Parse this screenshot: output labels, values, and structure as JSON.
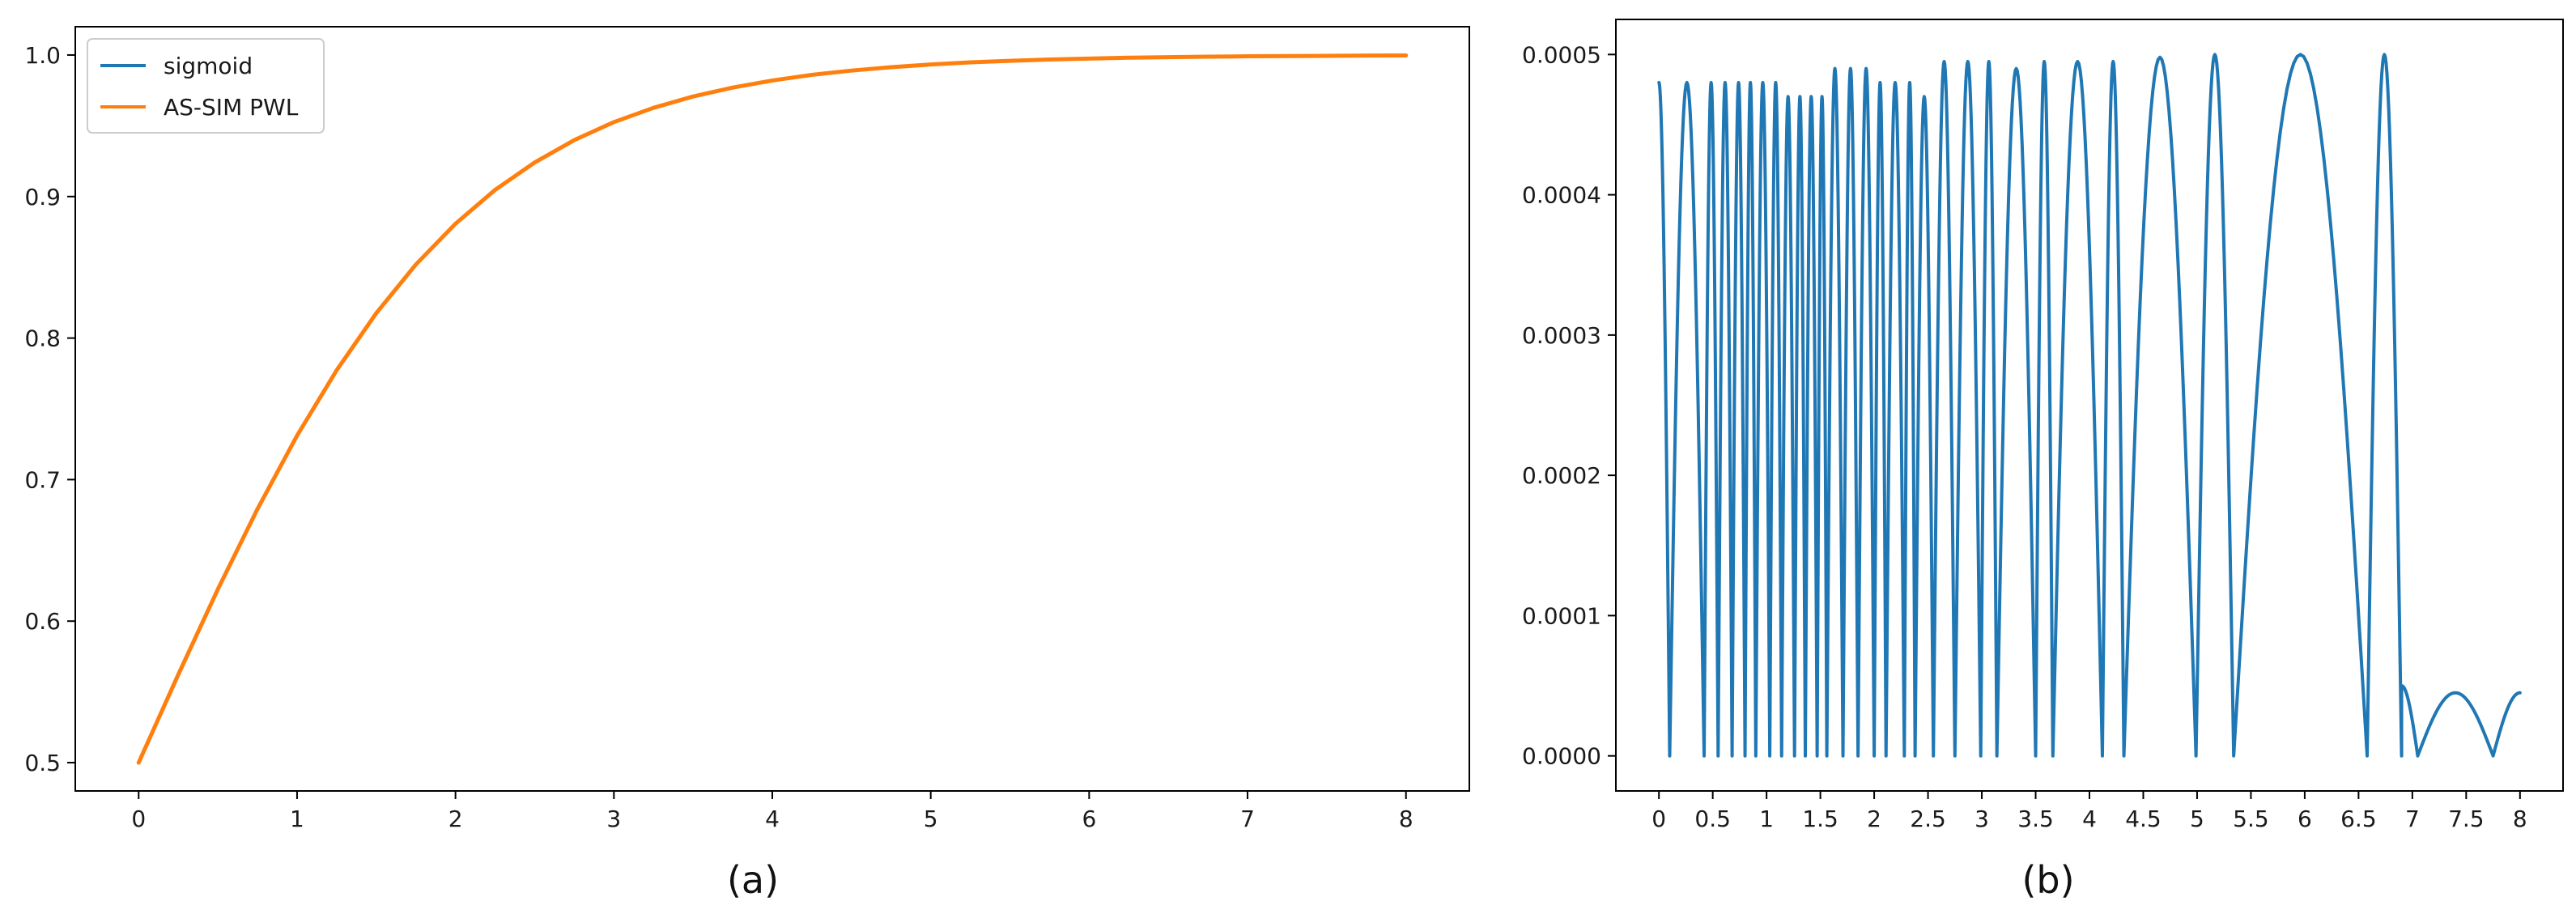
{
  "colors": {
    "sigmoid": "#1f77b4",
    "pwl": "#ff7f0e",
    "error": "#1f77b4",
    "axes": "#000000",
    "background": "#ffffff"
  },
  "chart_data": [
    {
      "panel": "a",
      "type": "line",
      "caption": "(a)",
      "title": "",
      "xlabel": "",
      "ylabel": "",
      "xlim": [
        -0.4,
        8.4
      ],
      "ylim": [
        0.48,
        1.02
      ],
      "xticks": [
        0,
        1,
        2,
        3,
        4,
        5,
        6,
        7,
        8
      ],
      "xtick_labels": [
        "0",
        "1",
        "2",
        "3",
        "4",
        "5",
        "6",
        "7",
        "8"
      ],
      "yticks": [
        0.5,
        0.6,
        0.7,
        0.8,
        0.9,
        1.0
      ],
      "ytick_labels": [
        "0.5",
        "0.6",
        "0.7",
        "0.8",
        "0.9",
        "1.0"
      ],
      "grid": false,
      "legend": "top-left",
      "series": [
        {
          "name": "sigmoid",
          "color": "#1f77b4",
          "x": [
            0,
            0.25,
            0.5,
            0.75,
            1,
            1.25,
            1.5,
            1.75,
            2,
            2.25,
            2.5,
            2.75,
            3,
            3.25,
            3.5,
            3.75,
            4,
            4.25,
            4.5,
            4.75,
            5,
            5.25,
            5.5,
            5.75,
            6,
            6.25,
            6.5,
            6.75,
            7,
            7.25,
            7.5,
            7.75,
            8
          ],
          "y": [
            0.5,
            0.5622,
            0.6225,
            0.6792,
            0.7311,
            0.7773,
            0.8176,
            0.852,
            0.8808,
            0.9047,
            0.9241,
            0.9399,
            0.9526,
            0.9627,
            0.9707,
            0.977,
            0.982,
            0.986,
            0.989,
            0.9914,
            0.9933,
            0.9948,
            0.9959,
            0.9968,
            0.9975,
            0.9981,
            0.9985,
            0.9988,
            0.9991,
            0.9993,
            0.9994,
            0.9996,
            0.9997
          ]
        },
        {
          "name": "AS-SIM PWL",
          "color": "#ff7f0e",
          "x": [
            0,
            0.25,
            0.5,
            0.75,
            1,
            1.25,
            1.5,
            1.75,
            2,
            2.25,
            2.5,
            2.75,
            3,
            3.25,
            3.5,
            3.75,
            4,
            4.25,
            4.5,
            4.75,
            5,
            5.25,
            5.5,
            5.75,
            6,
            6.25,
            6.5,
            6.75,
            7,
            7.25,
            7.5,
            7.75,
            8
          ],
          "y": [
            0.5,
            0.5622,
            0.6225,
            0.6792,
            0.7311,
            0.7773,
            0.8176,
            0.852,
            0.8808,
            0.9047,
            0.9241,
            0.9399,
            0.9526,
            0.9627,
            0.9707,
            0.977,
            0.982,
            0.986,
            0.989,
            0.9914,
            0.9933,
            0.9948,
            0.9959,
            0.9968,
            0.9975,
            0.9981,
            0.9985,
            0.9988,
            0.9991,
            0.9993,
            0.9994,
            0.9996,
            0.9997
          ]
        }
      ]
    },
    {
      "panel": "b",
      "type": "line",
      "caption": "(b)",
      "title": "",
      "xlabel": "",
      "ylabel": "",
      "xlim": [
        -0.4,
        8.4
      ],
      "ylim": [
        -2.5e-05,
        0.000525
      ],
      "xticks": [
        0,
        0.5,
        1,
        1.5,
        2,
        2.5,
        3,
        3.5,
        4,
        4.5,
        5,
        5.5,
        6,
        6.5,
        7,
        7.5,
        8
      ],
      "xtick_labels": [
        "0",
        "0.5",
        "1",
        "1.5",
        "2",
        "2.5",
        "3",
        "3.5",
        "4",
        "4.5",
        "5",
        "5.5",
        "6",
        "6.5",
        "7",
        "7.5",
        "8"
      ],
      "yticks": [
        0,
        0.0001,
        0.0002,
        0.0003,
        0.0004,
        0.0005
      ],
      "ytick_labels": [
        "0.0000",
        "0.0001",
        "0.0002",
        "0.0003",
        "0.0004",
        "0.0005"
      ],
      "grid": false,
      "legend": "none",
      "series": [
        {
          "segments": [
            {
              "x0": 0.0,
              "x1": 0.1,
              "peak": 0.00048,
              "kind": "fall"
            },
            {
              "x0": 0.1,
              "x1": 0.42,
              "peak": 0.00048,
              "kind": "arch"
            },
            {
              "x0": 0.42,
              "x1": 0.55,
              "peak": 0.00048,
              "kind": "arch"
            },
            {
              "x0": 0.55,
              "x1": 0.68,
              "peak": 0.00048,
              "kind": "arch"
            },
            {
              "x0": 0.68,
              "x1": 0.8,
              "peak": 0.00048,
              "kind": "arch"
            },
            {
              "x0": 0.8,
              "x1": 0.9,
              "peak": 0.00048,
              "kind": "arch"
            },
            {
              "x0": 0.9,
              "x1": 1.03,
              "peak": 0.00048,
              "kind": "arch"
            },
            {
              "x0": 1.03,
              "x1": 1.14,
              "peak": 0.00048,
              "kind": "arch"
            },
            {
              "x0": 1.14,
              "x1": 1.26,
              "peak": 0.00047,
              "kind": "arch"
            },
            {
              "x0": 1.26,
              "x1": 1.36,
              "peak": 0.00047,
              "kind": "arch"
            },
            {
              "x0": 1.36,
              "x1": 1.47,
              "peak": 0.00047,
              "kind": "arch"
            },
            {
              "x0": 1.47,
              "x1": 1.56,
              "peak": 0.00047,
              "kind": "arch"
            },
            {
              "x0": 1.56,
              "x1": 1.71,
              "peak": 0.00049,
              "kind": "arch"
            },
            {
              "x0": 1.71,
              "x1": 1.85,
              "peak": 0.00049,
              "kind": "arch"
            },
            {
              "x0": 1.85,
              "x1": 2.0,
              "peak": 0.00049,
              "kind": "arch"
            },
            {
              "x0": 2.0,
              "x1": 2.11,
              "peak": 0.00048,
              "kind": "arch"
            },
            {
              "x0": 2.11,
              "x1": 2.28,
              "peak": 0.00048,
              "kind": "arch"
            },
            {
              "x0": 2.28,
              "x1": 2.38,
              "peak": 0.00048,
              "kind": "arch"
            },
            {
              "x0": 2.38,
              "x1": 2.55,
              "peak": 0.00047,
              "kind": "arch"
            },
            {
              "x0": 2.55,
              "x1": 2.75,
              "peak": 0.000495,
              "kind": "arch"
            },
            {
              "x0": 2.75,
              "x1": 2.99,
              "peak": 0.000495,
              "kind": "arch"
            },
            {
              "x0": 2.99,
              "x1": 3.14,
              "peak": 0.000495,
              "kind": "arch"
            },
            {
              "x0": 3.14,
              "x1": 3.5,
              "peak": 0.00049,
              "kind": "arch"
            },
            {
              "x0": 3.5,
              "x1": 3.66,
              "peak": 0.000495,
              "kind": "arch"
            },
            {
              "x0": 3.66,
              "x1": 4.12,
              "peak": 0.000495,
              "kind": "arch"
            },
            {
              "x0": 4.12,
              "x1": 4.32,
              "peak": 0.000495,
              "kind": "arch"
            },
            {
              "x0": 4.32,
              "x1": 4.99,
              "peak": 0.000498,
              "kind": "arch"
            },
            {
              "x0": 4.99,
              "x1": 5.34,
              "peak": 0.0005,
              "kind": "arch"
            },
            {
              "x0": 5.34,
              "x1": 6.58,
              "peak": 0.0005,
              "kind": "arch"
            },
            {
              "x0": 6.58,
              "x1": 6.9,
              "peak": 0.0005,
              "kind": "arch"
            },
            {
              "x0": 6.9,
              "x1": 6.9,
              "peak": 5e-05,
              "kind": "jump"
            },
            {
              "x0": 6.9,
              "x1": 7.05,
              "peak": 5e-05,
              "kind": "fall"
            },
            {
              "x0": 7.05,
              "x1": 7.75,
              "peak": 4.5e-05,
              "kind": "arch"
            },
            {
              "x0": 7.75,
              "x1": 8.0,
              "peak": 4.5e-05,
              "kind": "rise"
            }
          ],
          "color": "#1f77b4"
        }
      ]
    }
  ]
}
